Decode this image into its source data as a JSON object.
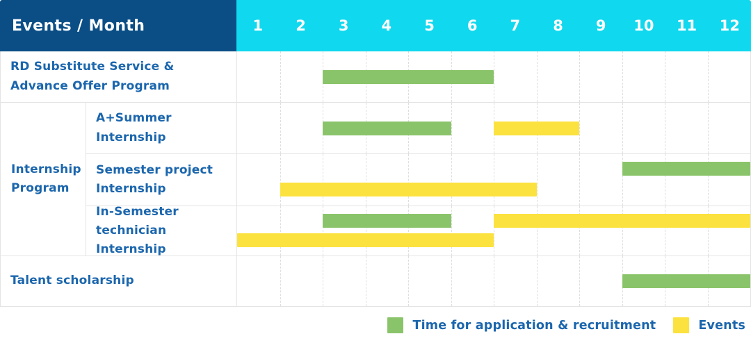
{
  "header": {
    "corner_label": "Events / Month"
  },
  "months": [
    "1",
    "2",
    "3",
    "4",
    "5",
    "6",
    "7",
    "8",
    "9",
    "10",
    "11",
    "12"
  ],
  "colors": {
    "header_navy": "#0B4E86",
    "header_cyan": "#10D8EE",
    "bar_green": "#8AC46A",
    "bar_yellow": "#FCE23E",
    "label_blue": "#1B66AD",
    "grid_line": "#E4E4E4"
  },
  "legend": {
    "items": [
      {
        "label": "Time for application & recruitment",
        "color": "green"
      },
      {
        "label": "Events",
        "color": "yellow"
      }
    ]
  },
  "chart_data": {
    "type": "gantt",
    "x_axis": {
      "unit": "Month",
      "min": 1,
      "max": 12,
      "ticks": [
        1,
        2,
        3,
        4,
        5,
        6,
        7,
        8,
        9,
        10,
        11,
        12
      ]
    },
    "series_legend": {
      "green": "Time for application & recruitment",
      "yellow": "Events"
    },
    "group": {
      "label": "Internship Program",
      "label_lines": [
        "Internship",
        "Program"
      ],
      "row_indexes": [
        1,
        2,
        3
      ]
    },
    "rows": [
      {
        "label": "RD Substitute Service & Advance Offer Program",
        "label_lines": [
          "RD Substitute Service &",
          "Advance Offer Program"
        ],
        "bars": [
          {
            "series": "Time for application & recruitment",
            "color": "green",
            "start_month": 3,
            "end_month": 6,
            "line": "single"
          }
        ]
      },
      {
        "label": "A+Summer Internship",
        "label_lines": [
          "A+Summer",
          "Internship"
        ],
        "bars": [
          {
            "series": "Time for application & recruitment",
            "color": "green",
            "start_month": 3,
            "end_month": 5,
            "line": "single"
          },
          {
            "series": "Events",
            "color": "yellow",
            "start_month": 7,
            "end_month": 8,
            "line": "single"
          }
        ]
      },
      {
        "label": "Semester project Internship",
        "label_lines": [
          "Semester project",
          "Internship"
        ],
        "bars": [
          {
            "series": "Time for application & recruitment",
            "color": "green",
            "start_month": 10,
            "end_month": 12,
            "line": "upper"
          },
          {
            "series": "Events",
            "color": "yellow",
            "start_month": 2,
            "end_month": 7,
            "line": "lower"
          }
        ]
      },
      {
        "label": "In-Semester technician Internship",
        "label_lines": [
          "In-Semester",
          "technician Internship"
        ],
        "bars": [
          {
            "series": "Time for application & recruitment",
            "color": "green",
            "start_month": 3,
            "end_month": 5,
            "line": "upper"
          },
          {
            "series": "Events",
            "color": "yellow",
            "start_month": 7,
            "end_month": 12,
            "line": "upper"
          },
          {
            "series": "Events",
            "color": "yellow",
            "start_month": 1,
            "end_month": 6,
            "line": "lower"
          }
        ]
      },
      {
        "label": "Talent scholarship",
        "label_lines": [
          "Talent scholarship"
        ],
        "bars": [
          {
            "series": "Time for application & recruitment",
            "color": "green",
            "start_month": 10,
            "end_month": 12,
            "line": "single"
          }
        ]
      }
    ]
  }
}
